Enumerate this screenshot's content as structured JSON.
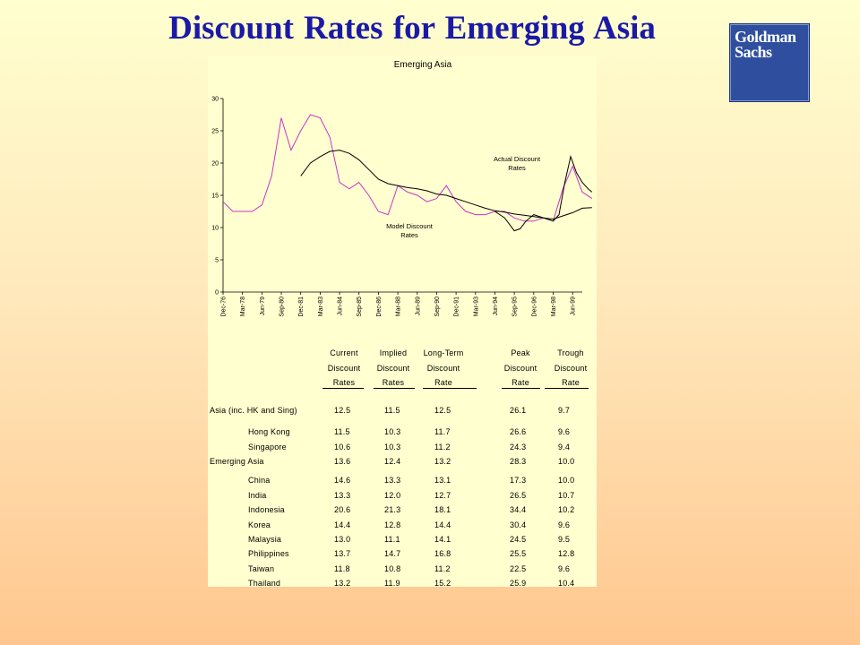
{
  "slide": {
    "title": "Discount Rates for Emerging  Asia",
    "logo_line1": "Goldman",
    "logo_line2": "Sachs"
  },
  "colors": {
    "title": "#1a1aa6",
    "background_top": "#FFFFCF",
    "background_bottom": "#FFC78F",
    "logo": "#2f4f9e",
    "actual_series": "#cc33cc",
    "model_series": "#000000"
  },
  "chart_data": {
    "type": "line",
    "title": "Emerging Asia",
    "ylim": [
      0,
      30
    ],
    "yticks": [
      "0",
      "5",
      "10",
      "15",
      "20",
      "25",
      "30"
    ],
    "xticks": [
      "Dec-76",
      "Mar-78",
      "Jun-79",
      "Sep-80",
      "Dec-81",
      "Mar-83",
      "Jun-84",
      "Sep-85",
      "Dec-86",
      "Mar-88",
      "Jun-89",
      "Sep-90",
      "Dec-91",
      "Mar-93",
      "Jun-94",
      "Sep-95",
      "Dec-96",
      "Mar-98",
      "Jun-99"
    ],
    "grid": false,
    "annotations": [
      {
        "text": "Actual Discount\nRates"
      },
      {
        "text": "Model Discount\nRates"
      }
    ],
    "series": [
      {
        "key": "actual",
        "color": "#cc33cc",
        "x": [
          0,
          0.5,
          1,
          1.5,
          2,
          2.5,
          3,
          3.5,
          4,
          4.5,
          5,
          5.5,
          6,
          6.5,
          7,
          7.5,
          8,
          8.5,
          9,
          9.5,
          10,
          10.5,
          11,
          11.5,
          12,
          12.5,
          13,
          13.5,
          14,
          14.5,
          15,
          15.5,
          16,
          16.5,
          17,
          17.5,
          18,
          18.5,
          19
        ],
        "y": [
          14.0,
          12.5,
          12.5,
          12.5,
          13.5,
          18.0,
          27.0,
          22.0,
          25.0,
          27.5,
          27.0,
          24.0,
          17.0,
          16.0,
          17.0,
          15.0,
          12.5,
          12.0,
          16.5,
          15.5,
          15.0,
          14.0,
          14.5,
          16.5,
          14.0,
          12.5,
          12.0,
          12.0,
          12.5,
          12.5,
          11.5,
          11.0,
          11.0,
          11.5,
          11.0,
          16.0,
          19.5,
          15.5,
          14.5
        ]
      },
      {
        "key": "model",
        "color": "#000000",
        "x": [
          4,
          4.5,
          5,
          5.5,
          6,
          6.5,
          7,
          7.5,
          8,
          8.5,
          9,
          9.5,
          10,
          10.5,
          11,
          11.5,
          12,
          12.5,
          13,
          13.5,
          14,
          14.5,
          15,
          15.5,
          16,
          16.5,
          17,
          17.5,
          18,
          18.5,
          19
        ],
        "y": [
          18.0,
          20.0,
          21.0,
          21.8,
          22.0,
          21.5,
          20.5,
          19.0,
          17.5,
          16.8,
          16.5,
          16.2,
          16.0,
          15.7,
          15.2,
          15.0,
          14.5,
          14.0,
          13.5,
          13.0,
          12.6,
          12.4,
          12.1,
          11.9,
          11.7,
          11.5,
          11.3,
          11.8,
          12.3,
          13.0,
          13.1
        ]
      },
      {
        "key": "actual_recent",
        "color": "#000000",
        "x": [
          14,
          14.5,
          15,
          15.3,
          15.6,
          16,
          16.5,
          17,
          17.3,
          17.6,
          17.9,
          18.2,
          18.5,
          18.8,
          19
        ],
        "y": [
          12.5,
          11.5,
          9.5,
          9.8,
          11.0,
          12.0,
          11.5,
          11.0,
          12.0,
          17.0,
          21.0,
          18.5,
          17.0,
          16.0,
          15.5
        ]
      }
    ]
  },
  "table": {
    "headers": [
      [
        "Current",
        "Discount",
        "Rates"
      ],
      [
        "Implied",
        "Discount",
        "Rates"
      ],
      [
        "Long-Term",
        "Discount",
        "Rate"
      ],
      [
        "Peak",
        "Discount",
        "Rate"
      ],
      [
        "Trough",
        "Discount",
        "Rate"
      ]
    ],
    "rows": [
      {
        "label": "Asia (inc. HK and Sing)",
        "indent": false,
        "values": [
          "12.5",
          "11.5",
          "12.5",
          "26.1",
          "9.7"
        ]
      },
      {
        "label": "Hong Kong",
        "indent": true,
        "values": [
          "11.5",
          "10.3",
          "11.7",
          "26.6",
          "9.6"
        ]
      },
      {
        "label": "Singapore",
        "indent": true,
        "values": [
          "10.6",
          "10.3",
          "11.2",
          "24.3",
          "9.4"
        ]
      },
      {
        "label": "Emerging Asia",
        "indent": false,
        "values": [
          "13.6",
          "12.4",
          "13.2",
          "28.3",
          "10.0"
        ]
      },
      {
        "label": "China",
        "indent": true,
        "values": [
          "14.6",
          "13.3",
          "13.1",
          "17.3",
          "10.0"
        ]
      },
      {
        "label": "India",
        "indent": true,
        "values": [
          "13.3",
          "12.0",
          "12.7",
          "26.5",
          "10.7"
        ]
      },
      {
        "label": "Indonesia",
        "indent": true,
        "values": [
          "20.6",
          "21.3",
          "18.1",
          "34.4",
          "10.2"
        ]
      },
      {
        "label": "Korea",
        "indent": true,
        "values": [
          "14.4",
          "12.8",
          "14.4",
          "30.4",
          "9.6"
        ]
      },
      {
        "label": "Malaysia",
        "indent": true,
        "values": [
          "13.0",
          "11.1",
          "14.1",
          "24.5",
          "9.5"
        ]
      },
      {
        "label": "Philippines",
        "indent": true,
        "values": [
          "13.7",
          "14.7",
          "16.8",
          "25.5",
          "12.8"
        ]
      },
      {
        "label": "Taiwan",
        "indent": true,
        "values": [
          "11.8",
          "10.8",
          "11.2",
          "22.5",
          "9.6"
        ]
      },
      {
        "label": "Thailand",
        "indent": true,
        "values": [
          "13.2",
          "11.9",
          "15.2",
          "25.9",
          "10.4"
        ]
      }
    ]
  }
}
